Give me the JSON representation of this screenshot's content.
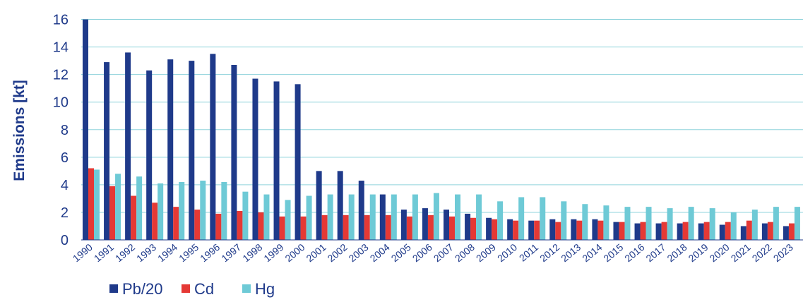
{
  "chart_data": {
    "type": "bar",
    "title": "",
    "xlabel": "",
    "ylabel": "Emissions [kt]",
    "ylim": [
      0,
      17
    ],
    "yticks": [
      0,
      2,
      4,
      6,
      8,
      10,
      12,
      14,
      16
    ],
    "grid": true,
    "legend_position": "bottom-left",
    "categories": [
      "1990",
      "1991",
      "1992",
      "1993",
      "1994",
      "1995",
      "1996",
      "1997",
      "1998",
      "1999",
      "2000",
      "2001",
      "2002",
      "2003",
      "2004",
      "2005",
      "2006",
      "2007",
      "2008",
      "2009",
      "2010",
      "2011",
      "2012",
      "2013",
      "2014",
      "2015",
      "2016",
      "2017",
      "2018",
      "2019",
      "2020",
      "2021",
      "2022",
      "2023"
    ],
    "series": [
      {
        "name": "Pb/20",
        "color": "#1f3a8a",
        "values": [
          16.0,
          12.9,
          13.6,
          12.3,
          13.1,
          13.0,
          13.5,
          12.7,
          11.7,
          11.5,
          11.3,
          5.0,
          5.0,
          4.3,
          3.3,
          2.2,
          2.3,
          2.2,
          1.9,
          1.6,
          1.5,
          1.4,
          1.5,
          1.5,
          1.5,
          1.3,
          1.2,
          1.2,
          1.2,
          1.2,
          1.1,
          1.0,
          1.2,
          1.0
        ]
      },
      {
        "name": "Cd",
        "color": "#e53935",
        "values": [
          5.2,
          3.9,
          3.2,
          2.7,
          2.4,
          2.2,
          1.9,
          2.1,
          2.0,
          1.7,
          1.7,
          1.8,
          1.8,
          1.8,
          1.8,
          1.7,
          1.8,
          1.7,
          1.6,
          1.5,
          1.4,
          1.4,
          1.3,
          1.4,
          1.4,
          1.3,
          1.3,
          1.3,
          1.3,
          1.3,
          1.3,
          1.4,
          1.3,
          1.2
        ]
      },
      {
        "name": "Hg",
        "color": "#6ecad6",
        "values": [
          5.1,
          4.8,
          4.6,
          4.1,
          4.2,
          4.3,
          4.2,
          3.5,
          3.3,
          2.9,
          3.2,
          3.3,
          3.3,
          3.3,
          3.3,
          3.3,
          3.4,
          3.3,
          3.3,
          2.8,
          3.1,
          3.1,
          2.8,
          2.6,
          2.5,
          2.4,
          2.4,
          2.3,
          2.4,
          2.3,
          2.0,
          2.2,
          2.4,
          2.4
        ]
      }
    ]
  }
}
